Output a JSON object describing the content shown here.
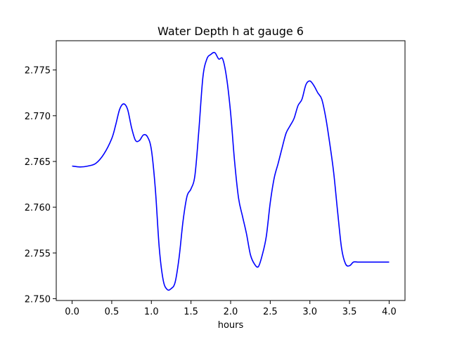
{
  "chart_data": {
    "type": "line",
    "title": "Water Depth h at gauge 6",
    "xlabel": "hours",
    "ylabel": "",
    "xlim": [
      -0.2,
      4.2
    ],
    "ylim": [
      2.7498,
      2.7782
    ],
    "xticks": [
      0.0,
      0.5,
      1.0,
      1.5,
      2.0,
      2.5,
      3.0,
      3.5,
      4.0
    ],
    "xtick_labels": [
      "0.0",
      "0.5",
      "1.0",
      "1.5",
      "2.0",
      "2.5",
      "3.0",
      "3.5",
      "4.0"
    ],
    "yticks": [
      2.75,
      2.755,
      2.76,
      2.765,
      2.77,
      2.775
    ],
    "ytick_labels": [
      "2.750",
      "2.755",
      "2.760",
      "2.765",
      "2.770",
      "2.775"
    ],
    "grid": false,
    "series": [
      {
        "color": "#0000ff",
        "x": [
          0.0,
          0.1,
          0.2,
          0.3,
          0.4,
          0.5,
          0.55,
          0.6,
          0.65,
          0.7,
          0.75,
          0.8,
          0.85,
          0.9,
          0.95,
          1.0,
          1.05,
          1.1,
          1.15,
          1.2,
          1.25,
          1.3,
          1.35,
          1.4,
          1.45,
          1.5,
          1.55,
          1.6,
          1.65,
          1.7,
          1.75,
          1.8,
          1.85,
          1.9,
          1.95,
          2.0,
          2.05,
          2.1,
          2.15,
          2.2,
          2.25,
          2.3,
          2.35,
          2.4,
          2.45,
          2.5,
          2.55,
          2.6,
          2.65,
          2.7,
          2.75,
          2.8,
          2.85,
          2.9,
          2.95,
          3.0,
          3.05,
          3.1,
          3.15,
          3.2,
          3.25,
          3.3,
          3.35,
          3.4,
          3.45,
          3.5,
          3.55,
          3.6,
          3.65,
          3.7,
          3.75,
          3.8,
          3.85,
          3.9,
          3.95,
          4.0
        ],
        "values": [
          2.7645,
          2.7644,
          2.7645,
          2.7648,
          2.7658,
          2.7675,
          2.769,
          2.7707,
          2.7713,
          2.7707,
          2.7687,
          2.7673,
          2.7673,
          2.7679,
          2.7677,
          2.7663,
          2.762,
          2.7555,
          2.752,
          2.751,
          2.7511,
          2.7518,
          2.7545,
          2.7585,
          2.7612,
          2.762,
          2.7635,
          2.7685,
          2.7742,
          2.7762,
          2.7767,
          2.7769,
          2.7762,
          2.7762,
          2.7741,
          2.7703,
          2.765,
          2.761,
          2.759,
          2.7571,
          2.7548,
          2.7538,
          2.7535,
          2.7548,
          2.7568,
          2.7605,
          2.7632,
          2.7648,
          2.7665,
          2.7681,
          2.7689,
          2.7697,
          2.7711,
          2.7718,
          2.7734,
          2.7738,
          2.7733,
          2.7725,
          2.7718,
          2.7698,
          2.767,
          2.7638,
          2.7595,
          2.7555,
          2.7538,
          2.7536,
          2.754,
          2.754,
          2.754,
          2.754,
          2.754,
          2.754,
          2.754,
          2.754,
          2.754,
          2.754
        ]
      }
    ]
  }
}
